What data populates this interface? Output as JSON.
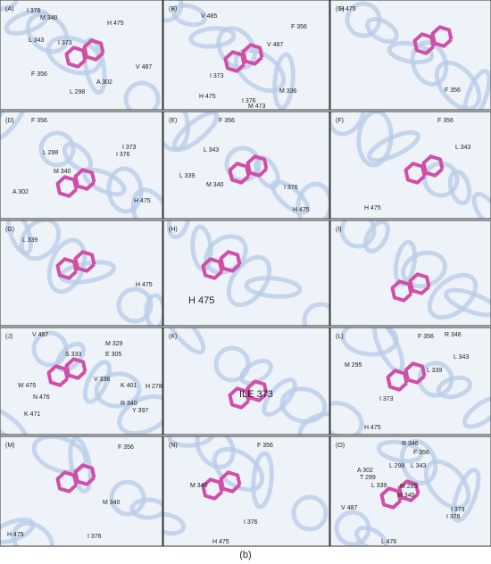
{
  "figure": {
    "panels": [
      {
        "label": "(A)",
        "residues": [
          "I 376",
          "M 340",
          "H 475",
          "L 343",
          "I 373",
          "F 356",
          "V 487",
          "A 302",
          "L 298"
        ]
      },
      {
        "label": "(B)",
        "residues": [
          "V 485",
          "F 356",
          "V 487",
          "I 373",
          "H 475",
          "I 376",
          "M 336",
          "M 473"
        ]
      },
      {
        "label": "(C)",
        "residues": [
          "H 475",
          "F 356"
        ]
      },
      {
        "label": "(D)",
        "residues": [
          "F 356",
          "L 298",
          "I 373",
          "I 376",
          "M 340",
          "A 302",
          "H 475"
        ]
      },
      {
        "label": "(E)",
        "residues": [
          "F 356",
          "L 343",
          "L 339",
          "M 340",
          "I 376",
          "H 475"
        ]
      },
      {
        "label": "(F)",
        "residues": [
          "F 356",
          "L 343",
          "H 475"
        ]
      },
      {
        "label": "(G)",
        "residues": [
          "L 339",
          "H 475"
        ]
      },
      {
        "label": "(H)",
        "residues": [
          "H 475"
        ]
      },
      {
        "label": "(I)",
        "residues": []
      },
      {
        "label": "(J)",
        "residues": [
          "V 487",
          "M 329",
          "S 333",
          "E 305",
          "W 475",
          "V 336",
          "K 401",
          "H 278",
          "N 476",
          "R 340",
          "Y 397",
          "K 471"
        ]
      },
      {
        "label": "(K)",
        "residues": [
          "ILE 373"
        ]
      },
      {
        "label": "(L)",
        "residues": [
          "F 356",
          "R 346",
          "M 295",
          "L 343",
          "L 339",
          "I 373",
          "H 475"
        ]
      },
      {
        "label": "(M)",
        "residues": [
          "F 356",
          "M 340",
          "H 475",
          "I 376"
        ]
      },
      {
        "label": "(N)",
        "residues": [
          "F 356",
          "M 340",
          "I 376",
          "H 475"
        ]
      },
      {
        "label": "(O)",
        "residues": [
          "R 346",
          "F 356",
          "A 302",
          "L 298",
          "L 343",
          "T 299",
          "L 339",
          "M 295",
          "M 340",
          "V 487",
          "I 373",
          "I 376",
          "L 476"
        ]
      }
    ],
    "caption": "(b)"
  }
}
